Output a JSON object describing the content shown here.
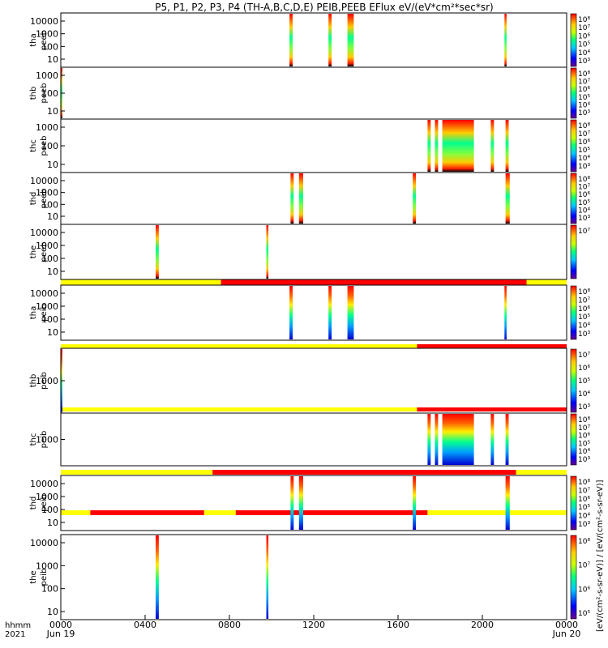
{
  "title": "P5, P1, P2, P3, P4 (TH-A,B,C,D,E) PEIB,PEEB EFlux eV/(eV*cm²*sec*sr)",
  "colorbar_title": "[eV/(cm²-s-sr-eV)] / [eV/(cm²-s-sr-eV)]",
  "x_axis": {
    "corner_label_1": "hhmm",
    "corner_label_2": "2021",
    "ticks": [
      "0000",
      "0400",
      "0800",
      "1200",
      "1600",
      "2000",
      "0000"
    ],
    "date_labels": [
      "Jun 19",
      "Jun 20"
    ]
  },
  "colors": {
    "mode_yellow": "#ffff00",
    "mode_red": "#ff0000",
    "colormap": [
      "#000000",
      "#7a00a0",
      "#0000ff",
      "#00c8ff",
      "#00ff80",
      "#c8ff00",
      "#ffcc00",
      "#ff0000"
    ]
  },
  "chart_data": {
    "type": "heatmap",
    "x_range_hours": [
      0,
      24
    ],
    "panels": [
      {
        "id": "tha_peeb",
        "label1": "tha",
        "label2": "peeb",
        "log_scale": true,
        "y_ticks": [
          "10000",
          "1000",
          "100",
          "10"
        ],
        "colorbar_ticks": [
          "10⁸",
          "10⁷",
          "10⁶",
          "10⁵",
          "10⁴",
          "10³"
        ],
        "intervals": [
          [
            10.85,
            11.0
          ],
          [
            12.7,
            12.85
          ],
          [
            13.6,
            13.9
          ],
          [
            21.05,
            21.15
          ]
        ],
        "mode_bar": []
      },
      {
        "id": "thb_peeb",
        "label1": "thb",
        "label2": "peeb",
        "log_scale": true,
        "y_ticks": [
          "1000",
          "100",
          "10"
        ],
        "colorbar_ticks": [
          "10⁸",
          "10⁷",
          "10⁶",
          "10⁵",
          "10⁴",
          "10³"
        ],
        "intervals": [
          [
            0.0,
            0.06
          ]
        ],
        "mode_bar": []
      },
      {
        "id": "thc_peeb",
        "label1": "thc",
        "label2": "peeb",
        "log_scale": true,
        "y_ticks": [
          "1000",
          "100",
          "10"
        ],
        "colorbar_ticks": [
          "10⁸",
          "10⁷",
          "10⁶",
          "10⁵",
          "10⁴",
          "10³"
        ],
        "intervals": [
          [
            17.4,
            17.55
          ],
          [
            17.75,
            17.9
          ],
          [
            18.1,
            19.6
          ],
          [
            20.4,
            20.55
          ],
          [
            21.1,
            21.25
          ]
        ],
        "mode_bar": []
      },
      {
        "id": "thd_peeb",
        "label1": "thd",
        "label2": "peeb",
        "log_scale": true,
        "y_ticks": [
          "10000",
          "1000",
          "100",
          "10"
        ],
        "colorbar_ticks": [
          "10⁸",
          "10⁷",
          "10⁶",
          "10⁵",
          "10⁴",
          "10³"
        ],
        "intervals": [
          [
            10.9,
            11.05
          ],
          [
            11.3,
            11.5
          ],
          [
            16.7,
            16.85
          ],
          [
            21.1,
            21.3
          ]
        ],
        "mode_bar": []
      },
      {
        "id": "the_peeb",
        "label1": "the",
        "label2": "peeb",
        "log_scale": true,
        "y_ticks": [
          "10000",
          "1000",
          "100",
          "10"
        ],
        "colorbar_ticks": [
          "10⁷"
        ],
        "intervals": [
          [
            4.5,
            4.65
          ],
          [
            9.75,
            9.85
          ]
        ],
        "mode_bar": [
          [
            "yellow",
            0,
            7.6
          ],
          [
            "red",
            7.6,
            22.1
          ],
          [
            "yellow",
            22.1,
            24
          ]
        ]
      },
      {
        "id": "tha_peib",
        "label1": "tha",
        "label2": "peib",
        "log_scale": true,
        "y_ticks": [
          "10000",
          "1000",
          "100",
          "10"
        ],
        "colorbar_ticks": [
          "10⁸",
          "10⁷",
          "10⁶",
          "10⁵",
          "10⁴",
          "10³"
        ],
        "intervals": [
          [
            10.85,
            11.0
          ],
          [
            12.7,
            12.85
          ],
          [
            13.6,
            13.9
          ],
          [
            21.05,
            21.15
          ]
        ],
        "mode_bar": [
          [
            "yellow",
            0,
            16.9
          ],
          [
            "red",
            16.9,
            24
          ]
        ]
      },
      {
        "id": "thb_peib",
        "label1": "thb",
        "label2": "peib",
        "log_scale": true,
        "y_ticks": [
          "1000"
        ],
        "colorbar_ticks": [
          "10⁷",
          "10⁶",
          "10⁵",
          "10⁴",
          "10³"
        ],
        "intervals": [
          [
            0.0,
            0.06
          ]
        ],
        "mode_bar": [
          [
            "yellow",
            0,
            16.9
          ],
          [
            "red",
            16.9,
            24
          ]
        ]
      },
      {
        "id": "thc_peib",
        "label1": "thc",
        "label2": "peib",
        "log_scale": true,
        "y_ticks": [
          "1000"
        ],
        "colorbar_ticks": [
          "10⁸",
          "10⁷",
          "10⁶",
          "10⁵",
          "10⁴",
          "10³"
        ],
        "intervals": [
          [
            17.4,
            17.55
          ],
          [
            17.75,
            17.9
          ],
          [
            18.1,
            19.6
          ],
          [
            20.4,
            20.55
          ],
          [
            21.1,
            21.25
          ]
        ],
        "mode_bar": [
          [
            "yellow",
            0,
            7.2
          ],
          [
            "red",
            7.2,
            21.6
          ],
          [
            "yellow",
            21.6,
            24
          ]
        ]
      },
      {
        "id": "thd_peib",
        "label1": "thd",
        "label2": "peib",
        "log_scale": true,
        "y_ticks": [
          "10000",
          "1000",
          "100",
          "10"
        ],
        "colorbar_ticks": [
          "10⁸",
          "10⁷",
          "10⁶",
          "10⁵",
          "10⁴",
          "10³"
        ],
        "intervals": [
          [
            10.9,
            11.05
          ],
          [
            11.3,
            11.5
          ],
          [
            16.7,
            16.85
          ],
          [
            21.1,
            21.3
          ]
        ],
        "mode_bar": [
          [
            "yellow",
            0,
            1.4
          ],
          [
            "red",
            1.4,
            6.8
          ],
          [
            "yellow",
            6.8,
            8.3
          ],
          [
            "red",
            8.3,
            17.4
          ],
          [
            "yellow",
            17.4,
            24
          ]
        ]
      },
      {
        "id": "the_peib",
        "label1": "the",
        "label2": "peib",
        "log_scale": true,
        "y_ticks": [
          "10000",
          "1000",
          "100",
          "10"
        ],
        "colorbar_ticks": [
          "10⁸",
          "10⁷",
          "10⁶",
          "10⁵"
        ],
        "intervals": [
          [
            4.5,
            4.65
          ],
          [
            9.75,
            9.85
          ]
        ],
        "mode_bar": []
      }
    ]
  }
}
